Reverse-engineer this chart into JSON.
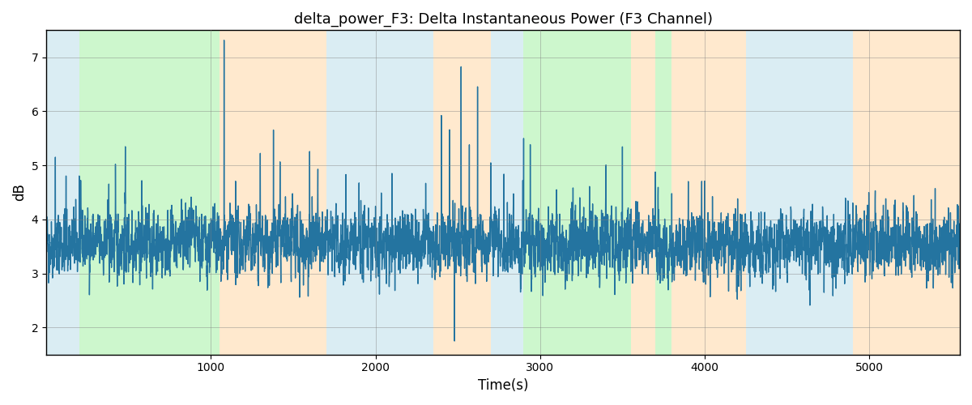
{
  "title": "delta_power_F3: Delta Instantaneous Power (F3 Channel)",
  "xlabel": "Time(s)",
  "ylabel": "dB",
  "xlim": [
    0,
    5550
  ],
  "ylim": [
    1.5,
    7.5
  ],
  "yticks": [
    2,
    3,
    4,
    5,
    6,
    7
  ],
  "xticks": [
    1000,
    2000,
    3000,
    4000,
    5000
  ],
  "line_color": "#2474a0",
  "line_width": 1.0,
  "figsize": [
    12,
    5
  ],
  "dpi": 100,
  "background_color": "#ffffff",
  "regions": [
    {
      "start": 0,
      "end": 200,
      "color": "#add8e6",
      "alpha": 0.45
    },
    {
      "start": 200,
      "end": 1050,
      "color": "#90ee90",
      "alpha": 0.45
    },
    {
      "start": 1050,
      "end": 1700,
      "color": "#ffd59e",
      "alpha": 0.5
    },
    {
      "start": 1700,
      "end": 2350,
      "color": "#add8e6",
      "alpha": 0.45
    },
    {
      "start": 2350,
      "end": 2700,
      "color": "#ffd59e",
      "alpha": 0.5
    },
    {
      "start": 2700,
      "end": 2900,
      "color": "#add8e6",
      "alpha": 0.45
    },
    {
      "start": 2900,
      "end": 3550,
      "color": "#90ee90",
      "alpha": 0.45
    },
    {
      "start": 3550,
      "end": 3700,
      "color": "#ffd59e",
      "alpha": 0.5
    },
    {
      "start": 3700,
      "end": 3800,
      "color": "#90ee90",
      "alpha": 0.45
    },
    {
      "start": 3800,
      "end": 4250,
      "color": "#ffd59e",
      "alpha": 0.5
    },
    {
      "start": 4250,
      "end": 4900,
      "color": "#add8e6",
      "alpha": 0.45
    },
    {
      "start": 4900,
      "end": 5550,
      "color": "#ffd59e",
      "alpha": 0.5
    }
  ],
  "seed": 42,
  "n_points": 5550,
  "base": 3.55,
  "noise_std": 0.28,
  "ar_coeff": 0.45
}
